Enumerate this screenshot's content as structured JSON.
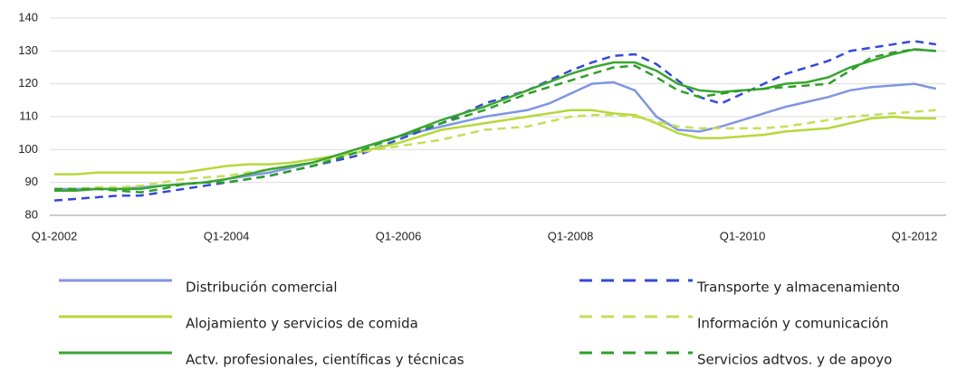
{
  "chart_data": {
    "type": "line",
    "categories": [
      "Q1-2002",
      null,
      null,
      null,
      null,
      null,
      null,
      null,
      "Q1-2004",
      null,
      null,
      null,
      null,
      null,
      null,
      null,
      "Q1-2006",
      null,
      null,
      null,
      null,
      null,
      null,
      null,
      "Q1-2008",
      null,
      null,
      null,
      null,
      null,
      null,
      null,
      "Q1-2010",
      null,
      null,
      null,
      null,
      null,
      null,
      null,
      "Q1-2012",
      null
    ],
    "ylim": [
      80,
      140
    ],
    "yticks": [
      80,
      90,
      100,
      110,
      120,
      130,
      140
    ],
    "grid": true,
    "series": [
      {
        "name": "Distribución comercial",
        "color": "#7f96e0",
        "dashed": false,
        "values": [
          88,
          88,
          88,
          88,
          88.5,
          89,
          89.5,
          90,
          91,
          92,
          93,
          94.5,
          96,
          98,
          100,
          102,
          104,
          105.5,
          107,
          108.5,
          110,
          111,
          112,
          114,
          117,
          120,
          120.5,
          118,
          110,
          106,
          105.5,
          107,
          109,
          111,
          113,
          114.5,
          116,
          118,
          119,
          119.5,
          120,
          118.5
        ]
      },
      {
        "name": "Transporte y almacenamiento",
        "color": "#3548d8",
        "dashed": true,
        "values": [
          84.5,
          85,
          85.5,
          86,
          86,
          87,
          88,
          89,
          90,
          91,
          92,
          93.5,
          95,
          96.5,
          98,
          100.5,
          103,
          105.5,
          108,
          111,
          114,
          116,
          118,
          121,
          124,
          126.5,
          128.5,
          129,
          126,
          121,
          116,
          114,
          117,
          120,
          123,
          125,
          127,
          130,
          131,
          132,
          133,
          132
        ]
      },
      {
        "name": "Alojamiento y servicios de comida",
        "color": "#b5d83a",
        "dashed": false,
        "values": [
          92.5,
          92.5,
          93,
          93,
          93,
          93,
          93,
          94,
          95,
          95.5,
          95.5,
          96,
          97,
          98,
          99,
          100.5,
          102,
          104,
          106,
          107,
          108,
          109,
          110,
          111,
          112,
          112,
          111,
          110.5,
          108,
          105,
          103.5,
          103.5,
          104,
          104.5,
          105.5,
          106,
          106.5,
          108,
          109.5,
          110,
          109.5,
          109.5
        ]
      },
      {
        "name": "Información y comunicación",
        "color": "#c3df5a",
        "dashed": true,
        "values": [
          88,
          88,
          88.5,
          88.5,
          89,
          90,
          91,
          91.5,
          92,
          93,
          94,
          95,
          96,
          97.5,
          99,
          100,
          101,
          102,
          103,
          104.5,
          106,
          106.5,
          107,
          108.5,
          110,
          110.5,
          110.5,
          110,
          108.5,
          107,
          106.5,
          106.5,
          106.5,
          106.5,
          107,
          108,
          109,
          110,
          110.5,
          111,
          111.5,
          112
        ]
      },
      {
        "name": "Actv. profesionales, científicas y técnicas",
        "color": "#3aa630",
        "dashed": false,
        "values": [
          87.5,
          87.5,
          88,
          88,
          88,
          89,
          89.5,
          90,
          91,
          92.5,
          94,
          95,
          96,
          98,
          100,
          102,
          104,
          106.5,
          109,
          111,
          113,
          115.5,
          118,
          120.5,
          123,
          125,
          126.5,
          126.5,
          124,
          120,
          118,
          117.5,
          118,
          118.5,
          120,
          120.5,
          122,
          125,
          127,
          129,
          130.5,
          130
        ]
      },
      {
        "name": "Servicios adtvos. y de apoyo",
        "color": "#2f9e2a",
        "dashed": true,
        "values": [
          88,
          88,
          88,
          87.5,
          87,
          88,
          89.5,
          90,
          90,
          91,
          92,
          93.5,
          95,
          97,
          99,
          101.5,
          104,
          106,
          108,
          110,
          112,
          114.5,
          117,
          119,
          121,
          123,
          125,
          125.5,
          122,
          118,
          116,
          117,
          118,
          118.5,
          119,
          119.5,
          120,
          124,
          128,
          129.5,
          130.5,
          130
        ]
      }
    ]
  }
}
